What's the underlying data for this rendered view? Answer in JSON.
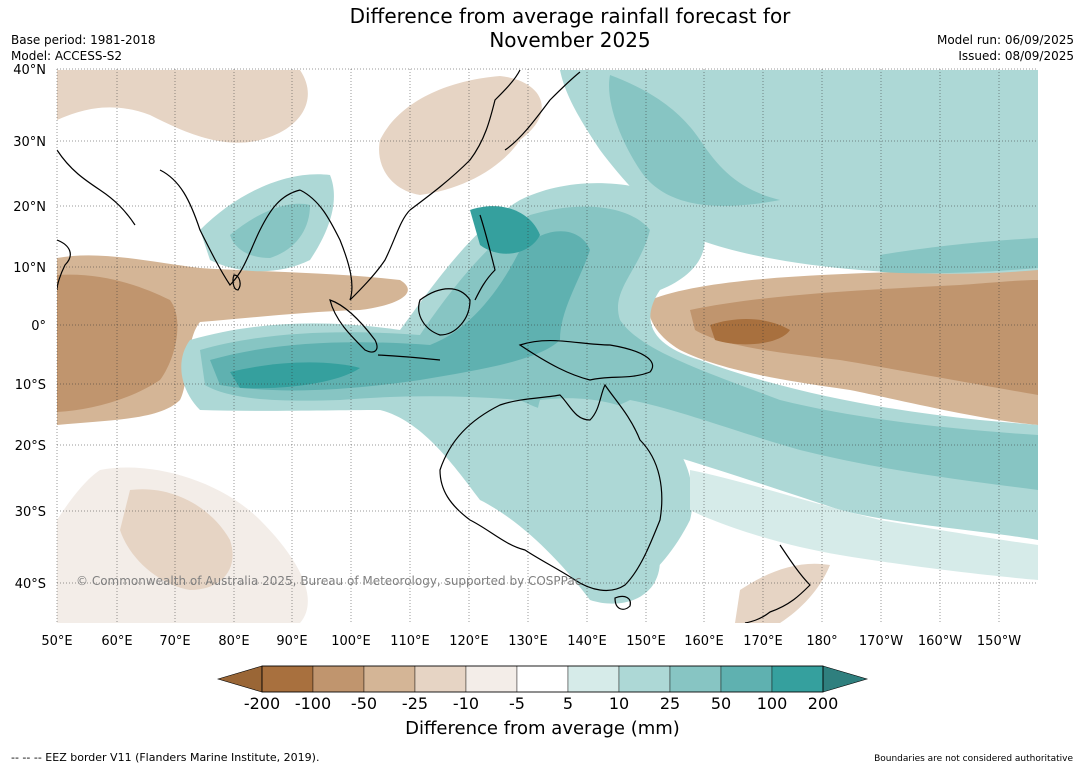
{
  "title": "Difference from average rainfall forecast for November 2025",
  "title_line1": "Difference from average rainfall forecast for",
  "title_line2": "November 2025",
  "base_period": "Base period: 1981-2018",
  "model": "Model: ACCESS-S2",
  "model_run": "Model run: 06/09/2025",
  "issued": "Issued: 08/09/2025",
  "copyright": "© Commonwealth of Australia 2025, Bureau of Meteorology, supported by COSPPac",
  "legend_title": "Difference from average (mm)",
  "footer_left": "--  --  -- EEZ border V11 (Flanders Marine Institute, 2019).",
  "footer_right": "Boundaries are not considered authoritative",
  "map": {
    "lat_labels": [
      "40°N",
      "30°N",
      "20°N",
      "10°N",
      "0°",
      "10°S",
      "20°S",
      "30°S",
      "40°S"
    ],
    "lon_labels": [
      "50°E",
      "60°E",
      "70°E",
      "80°E",
      "90°E",
      "100°E",
      "110°E",
      "120°E",
      "130°E",
      "140°E",
      "150°E",
      "160°E",
      "170°E",
      "180°",
      "170°W",
      "160°W",
      "150°W"
    ],
    "extent": {
      "lon_min": 50,
      "lon_max": 218,
      "lat_min": -46,
      "lat_max": 40
    },
    "grid": true
  },
  "colorbar": {
    "ticks": [
      "-200",
      "-100",
      "-50",
      "-25",
      "-10",
      "-5",
      "5",
      "10",
      "25",
      "50",
      "100",
      "200"
    ],
    "colors": [
      "#a8703e",
      "#c0956e",
      "#d4b596",
      "#e6d4c4",
      "#f3ede8",
      "#ffffff",
      "#d6ebe9",
      "#add8d6",
      "#87c5c3",
      "#5fb1b0",
      "#35a09e"
    ],
    "under_color": "#9a6636",
    "over_color": "#2f7f7e"
  }
}
